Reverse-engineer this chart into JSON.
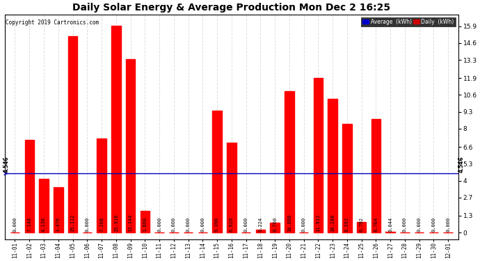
{
  "title": "Daily Solar Energy & Average Production Mon Dec 2 16:25",
  "copyright": "Copyright 2019 Cartronics.com",
  "categories": [
    "11-01",
    "11-02",
    "11-03",
    "11-04",
    "11-05",
    "11-06",
    "11-07",
    "11-08",
    "11-09",
    "11-10",
    "11-11",
    "11-12",
    "11-13",
    "11-14",
    "11-15",
    "11-16",
    "11-17",
    "11-18",
    "11-19",
    "11-20",
    "11-21",
    "11-22",
    "11-23",
    "11-24",
    "11-25",
    "11-26",
    "11-27",
    "11-28",
    "11-29",
    "11-30",
    "12-01"
  ],
  "values": [
    0.0,
    7.148,
    4.136,
    3.476,
    15.112,
    0.0,
    7.268,
    15.916,
    13.344,
    1.66,
    0.0,
    0.0,
    0.0,
    0.0,
    9.396,
    6.92,
    0.0,
    0.224,
    0.76,
    10.88,
    0.0,
    11.912,
    10.28,
    8.392,
    0.792,
    8.764,
    0.044,
    0.0,
    0.0,
    0.0,
    0.0
  ],
  "average": 4.546,
  "bar_color": "#ff0000",
  "average_color": "#0000bb",
  "bg_color": "#ffffff",
  "plot_bg_color": "#ffffff",
  "yticks": [
    0.0,
    1.3,
    2.7,
    4.0,
    5.3,
    6.6,
    8.0,
    9.3,
    10.6,
    11.9,
    13.3,
    14.6,
    15.9
  ],
  "grid_color": "#dddddd",
  "legend_avg_bg": "#0000cc",
  "legend_daily_bg": "#cc0000"
}
